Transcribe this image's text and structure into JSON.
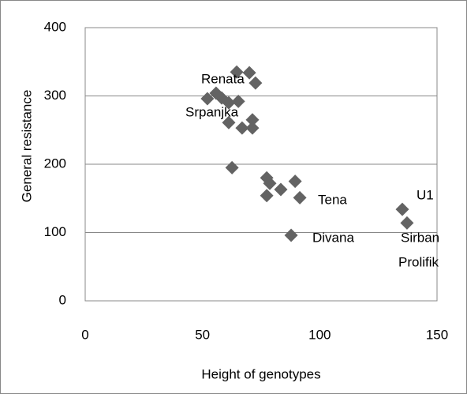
{
  "chart_data": {
    "type": "scatter",
    "x_label": "Height of genotypes",
    "y_label": "General resistance",
    "x": [
      64.6,
      70,
      72.6,
      52.1,
      55.8,
      58.2,
      61.2,
      65.3,
      71.3,
      61.2,
      66.9,
      71.3,
      62.6,
      77.4,
      78.7,
      77.4,
      83.4,
      89.5,
      91.5,
      87.8,
      135.2,
      137.2
    ],
    "values": [
      335,
      334,
      319,
      296,
      304,
      297,
      290,
      292,
      265,
      261,
      253,
      253,
      195,
      180,
      172,
      154,
      163,
      175,
      151,
      96,
      134,
      114
    ],
    "color": "#636363",
    "xlim": [
      0,
      150
    ],
    "xticks": [
      0,
      50,
      100,
      150
    ],
    "ylim": [
      0,
      400
    ],
    "yticks": [
      0,
      100,
      200,
      300,
      400
    ],
    "grid": true,
    "annotations": [
      "Renata",
      "Srpanjka",
      "Tena",
      "Divana",
      "U1",
      "Sirban",
      "Prolifik"
    ]
  }
}
